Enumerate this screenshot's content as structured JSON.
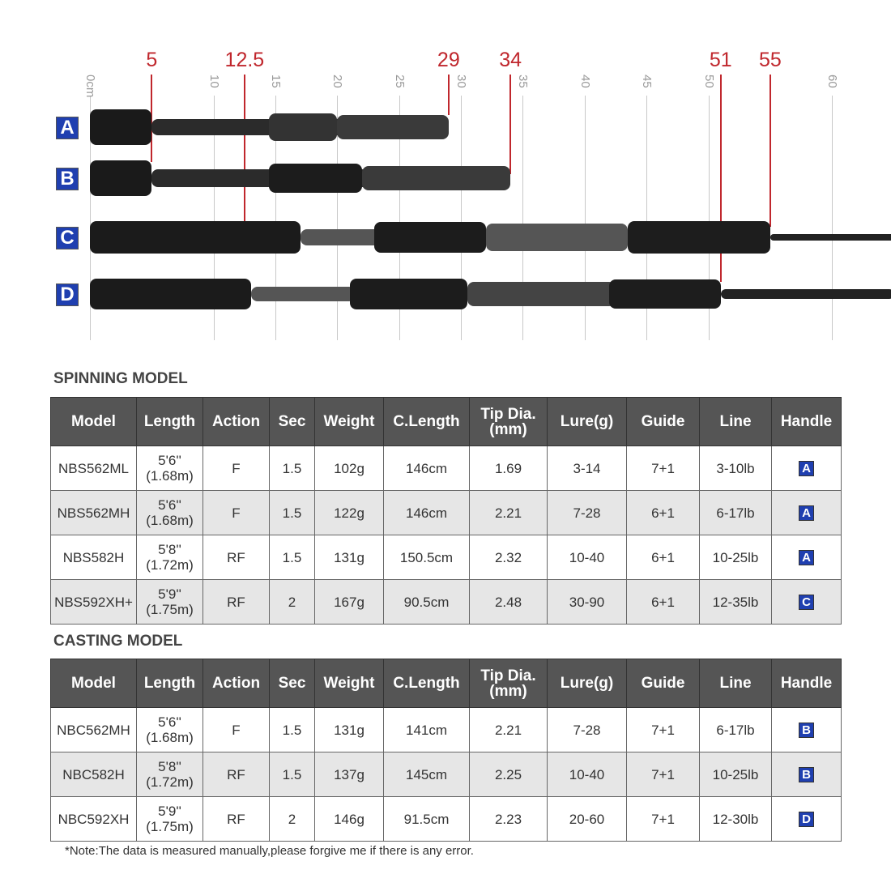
{
  "ruler": {
    "ticks": [
      {
        "v": 0,
        "label": "0cm"
      },
      {
        "v": 10,
        "label": "10"
      },
      {
        "v": 15,
        "label": "15"
      },
      {
        "v": 20,
        "label": "20"
      },
      {
        "v": 25,
        "label": "25"
      },
      {
        "v": 30,
        "label": "30"
      },
      {
        "v": 35,
        "label": "35"
      },
      {
        "v": 40,
        "label": "40"
      },
      {
        "v": 45,
        "label": "45"
      },
      {
        "v": 50,
        "label": "50"
      },
      {
        "v": 60,
        "label": "60"
      }
    ],
    "markers": [
      {
        "v": 5,
        "label": "5"
      },
      {
        "v": 12.5,
        "label": "12.5"
      },
      {
        "v": 29,
        "label": "29"
      },
      {
        "v": 34,
        "label": "34"
      },
      {
        "v": 51,
        "label": "51"
      },
      {
        "v": 55,
        "label": "55"
      }
    ],
    "accent": "#c0272d"
  },
  "handles": [
    "A",
    "B",
    "C",
    "D"
  ],
  "columns": [
    "Model",
    "Length",
    "Action",
    "Sec",
    "Weight",
    "C.Length",
    "Tip Dia.\n(mm)",
    "Lure(g)",
    "Guide",
    "Line",
    "Handle"
  ],
  "spinning": {
    "title": "SPINNING MODEL",
    "rows": [
      [
        "NBS562ML",
        "5'6''\n(1.68m)",
        "F",
        "1.5",
        "102g",
        "146cm",
        "1.69",
        "3-14",
        "7+1",
        "3-10lb",
        "A"
      ],
      [
        "NBS562MH",
        "5'6''\n(1.68m)",
        "F",
        "1.5",
        "122g",
        "146cm",
        "2.21",
        "7-28",
        "6+1",
        "6-17lb",
        "A"
      ],
      [
        "NBS582H",
        "5'8''\n(1.72m)",
        "RF",
        "1.5",
        "131g",
        "150.5cm",
        "2.32",
        "10-40",
        "6+1",
        "10-25lb",
        "A"
      ],
      [
        "NBS592XH+",
        "5'9''\n(1.75m)",
        "RF",
        "2",
        "167g",
        "90.5cm",
        "2.48",
        "30-90",
        "6+1",
        "12-35lb",
        "C"
      ]
    ]
  },
  "casting": {
    "title": "CASTING MODEL",
    "rows": [
      [
        "NBC562MH",
        "5'6''\n(1.68m)",
        "F",
        "1.5",
        "131g",
        "141cm",
        "2.21",
        "7-28",
        "7+1",
        "6-17lb",
        "B"
      ],
      [
        "NBC582H",
        "5'8''\n(1.72m)",
        "RF",
        "1.5",
        "137g",
        "145cm",
        "2.25",
        "10-40",
        "7+1",
        "10-25lb",
        "B"
      ],
      [
        "NBC592XH",
        "5'9''\n(1.75m)",
        "RF",
        "2",
        "146g",
        "91.5cm",
        "2.23",
        "20-60",
        "7+1",
        "12-30lb",
        "D"
      ]
    ]
  },
  "note": "*Note:The data is measured manually,please forgive me if there is any error.",
  "badge_color": "#1f3fb0"
}
